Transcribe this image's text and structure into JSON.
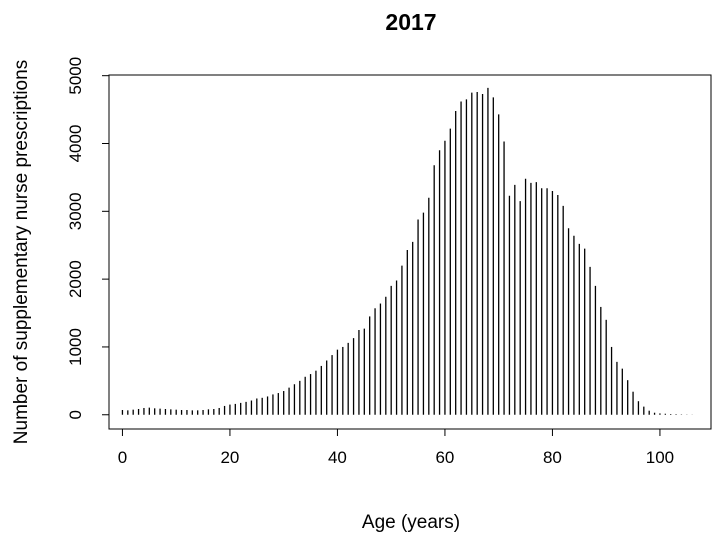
{
  "chart_data": {
    "type": "bar",
    "title": "2017",
    "xlabel": "Age (years)",
    "ylabel": "Number of supplementary nurse prescriptions",
    "xlim": [
      -2.5,
      109.5
    ],
    "ylim": [
      -210,
      5010
    ],
    "xticks": [
      0,
      20,
      40,
      60,
      80,
      100
    ],
    "yticks": [
      0,
      1000,
      2000,
      3000,
      4000,
      5000
    ],
    "grid": false,
    "legend": "none",
    "x": [
      0,
      1,
      2,
      3,
      4,
      5,
      6,
      7,
      8,
      9,
      10,
      11,
      12,
      13,
      14,
      15,
      16,
      17,
      18,
      19,
      20,
      21,
      22,
      23,
      24,
      25,
      26,
      27,
      28,
      29,
      30,
      31,
      32,
      33,
      34,
      35,
      36,
      37,
      38,
      39,
      40,
      41,
      42,
      43,
      44,
      45,
      46,
      47,
      48,
      49,
      50,
      51,
      52,
      53,
      54,
      55,
      56,
      57,
      58,
      59,
      60,
      61,
      62,
      63,
      64,
      65,
      66,
      67,
      68,
      69,
      70,
      71,
      72,
      73,
      74,
      75,
      76,
      77,
      78,
      79,
      80,
      81,
      82,
      83,
      84,
      85,
      86,
      87,
      88,
      89,
      90,
      91,
      92,
      93,
      94,
      95,
      96,
      97,
      98,
      99,
      100,
      101,
      102,
      103,
      104,
      105,
      106
    ],
    "values": [
      70,
      65,
      75,
      85,
      100,
      105,
      95,
      90,
      85,
      80,
      75,
      70,
      70,
      65,
      65,
      70,
      80,
      85,
      100,
      130,
      150,
      160,
      175,
      190,
      210,
      240,
      250,
      270,
      300,
      320,
      350,
      400,
      450,
      500,
      560,
      600,
      650,
      720,
      800,
      880,
      960,
      1000,
      1060,
      1130,
      1250,
      1270,
      1450,
      1570,
      1640,
      1740,
      1900,
      1980,
      2200,
      2430,
      2550,
      2880,
      2980,
      3200,
      3680,
      3900,
      4040,
      4220,
      4480,
      4620,
      4650,
      4750,
      4760,
      4730,
      4820,
      4680,
      4430,
      4030,
      3230,
      3390,
      3150,
      3480,
      3420,
      3430,
      3340,
      3340,
      3300,
      3240,
      3080,
      2750,
      2640,
      2520,
      2450,
      2180,
      1900,
      1590,
      1400,
      1000,
      780,
      680,
      510,
      340,
      200,
      120,
      60,
      30,
      20,
      15,
      10,
      8,
      5,
      3,
      2
    ],
    "bar_color": "#000000"
  }
}
